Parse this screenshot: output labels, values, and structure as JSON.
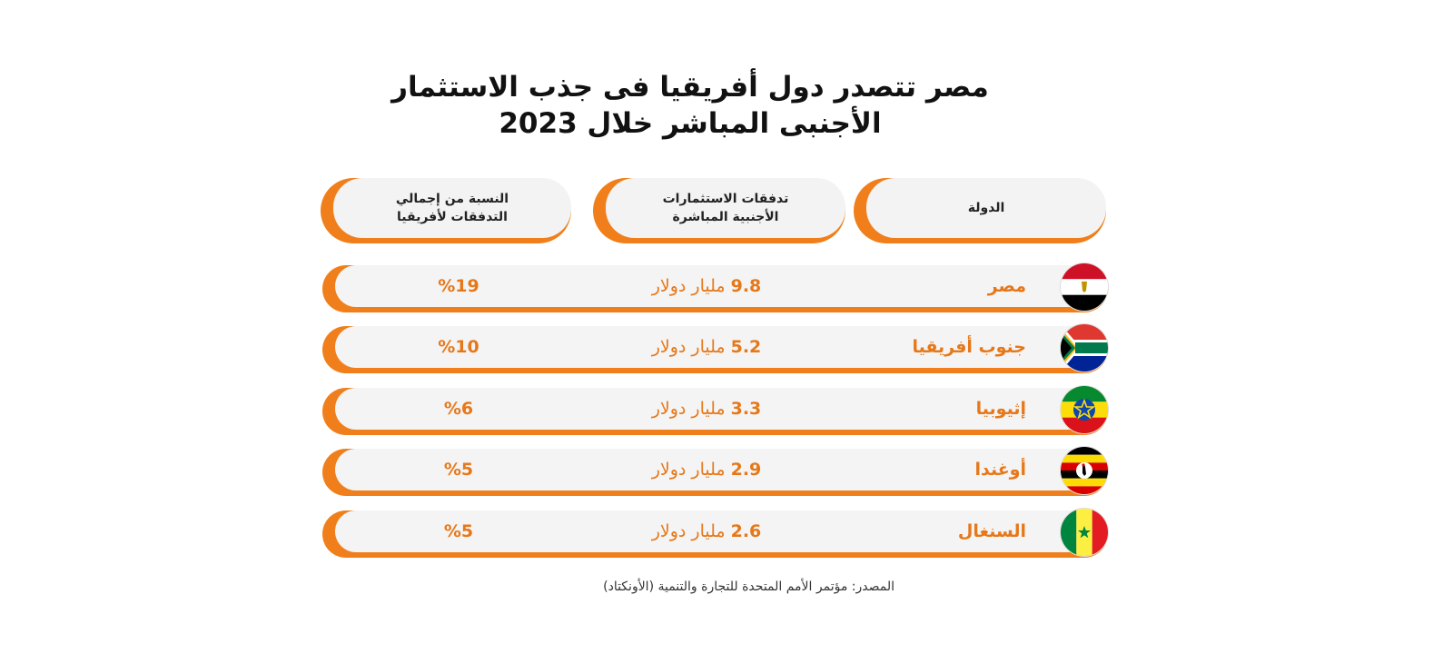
{
  "title_line1": "مصر تتصدر دول أفريقيا فى جذب الاستثمار",
  "title_line2": "الأجنبى المباشر خلال 2023",
  "headers": {
    "country": "الدولة",
    "flows_line1": "تدفقات الاستثمارات",
    "flows_line2": "الأجنبية المباشرة",
    "share_line1": "النسبة من إجمالي",
    "share_line2": "التدفقات لأفريقيا"
  },
  "unit": "مليار دولار",
  "source": "المصدر: مؤتمر الأمم المتحدة للتجارة والتنمية (الأونكتاد)",
  "colors": {
    "accent": "#f07f1b",
    "text_accent": "#e6781a",
    "row_bg": "#f4f4f4"
  },
  "chart_data": {
    "type": "table",
    "title": "مصر تتصدر دول أفريقيا فى جذب الاستثمار الأجنبى المباشر خلال 2023",
    "columns": [
      "الدولة",
      "تدفقات الاستثمارات الأجنبية المباشرة",
      "النسبة من إجمالي التدفقات لأفريقيا"
    ],
    "rows": [
      {
        "country": "مصر",
        "flag": "egypt-flag",
        "value": "9.8",
        "share": "%19"
      },
      {
        "country": "جنوب أفريقيا",
        "flag": "south-africa-flag",
        "value": "5.2",
        "share": "%10"
      },
      {
        "country": "إثيوبيا",
        "flag": "ethiopia-flag",
        "value": "3.3",
        "share": "%6"
      },
      {
        "country": "أوغندا",
        "flag": "uganda-flag",
        "value": "2.9",
        "share": "%5"
      },
      {
        "country": "السنغال",
        "flag": "senegal-flag",
        "value": "2.6",
        "share": "%5"
      }
    ]
  }
}
